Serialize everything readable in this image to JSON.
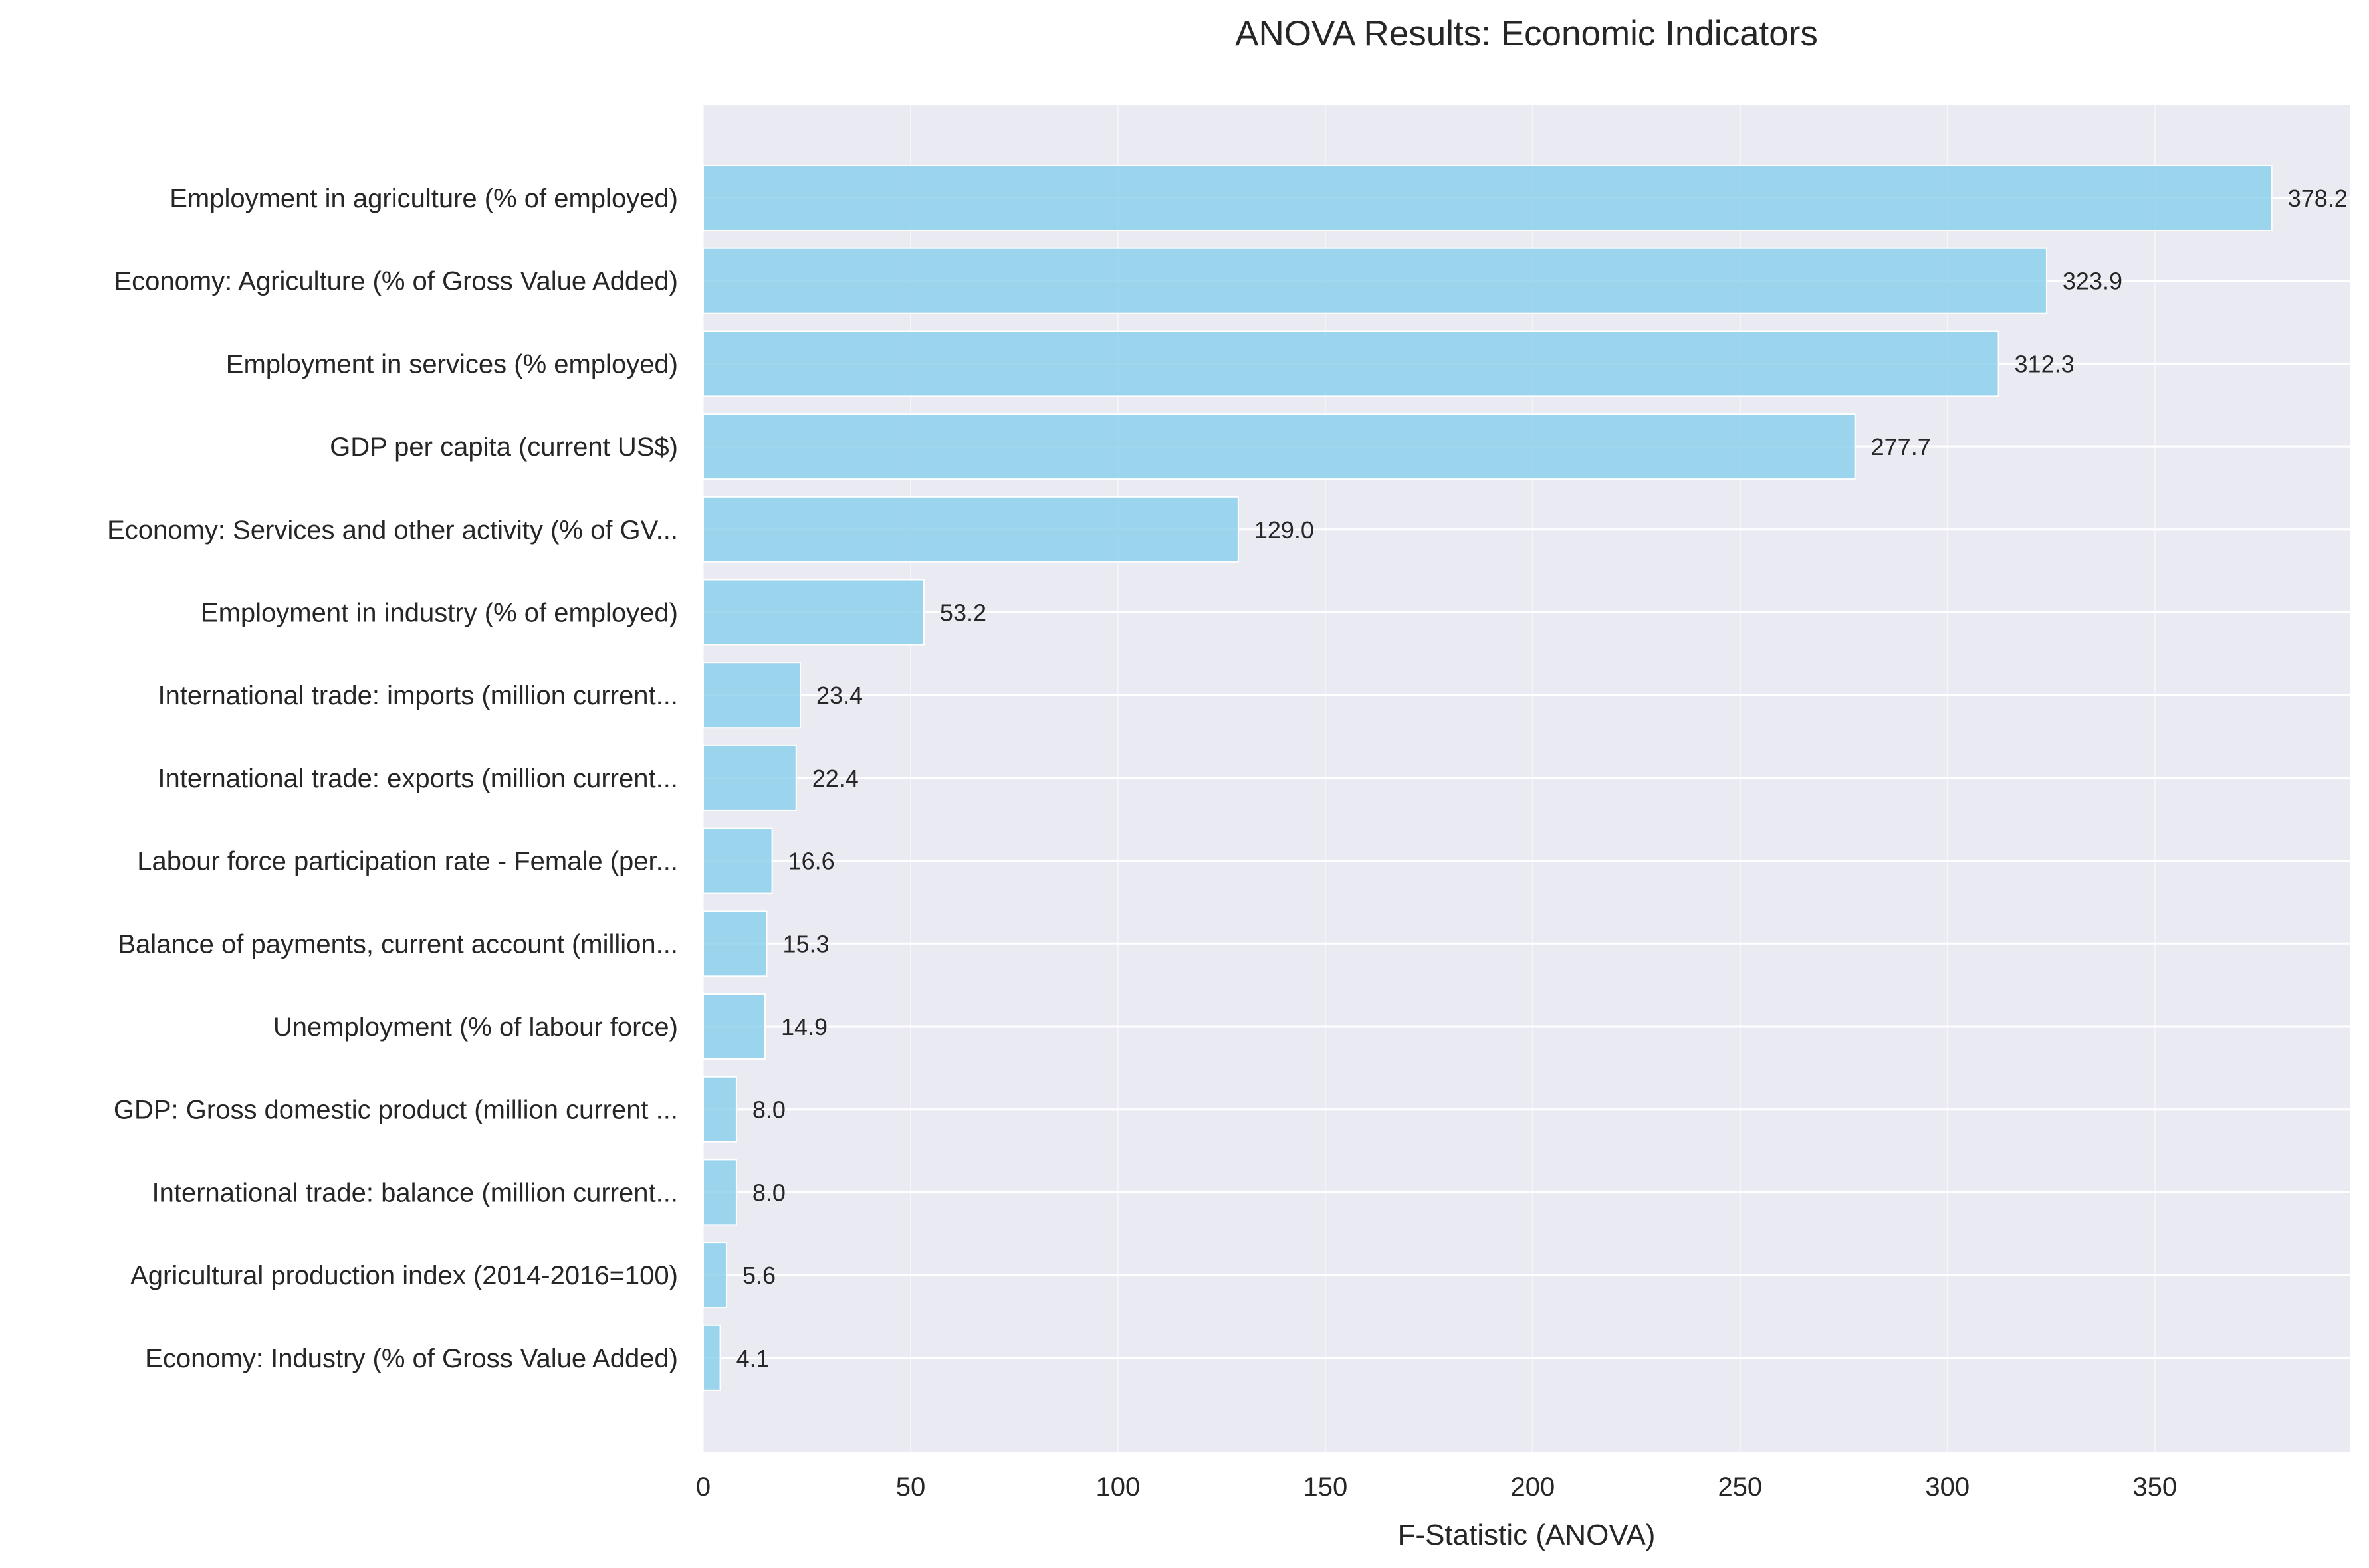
{
  "chart_data": {
    "type": "bar",
    "orientation": "horizontal",
    "title": "ANOVA Results: Economic Indicators",
    "xlabel": "F-Statistic (ANOVA)",
    "ylabel": "",
    "xlim": [
      0,
      397
    ],
    "xticks": [
      0,
      50,
      100,
      150,
      200,
      250,
      300,
      350
    ],
    "grid": true,
    "bar_color": "#87CEEB",
    "background_color": "#EAEAF2",
    "categories": [
      "Employment in agriculture (% of employed)",
      "Economy: Agriculture (% of Gross Value Added)",
      "Employment in services (% employed)",
      "GDP per capita (current US$)",
      "Economy: Services and other activity (% of GV...",
      "Employment in industry (% of employed)",
      "International trade: imports (million current...",
      "International trade: exports (million current...",
      "Labour force participation rate - Female (per...",
      "Balance of payments, current account (million...",
      "Unemployment (% of labour force)",
      "GDP: Gross domestic product (million current ...",
      "International trade: balance (million current...",
      "Agricultural production index (2014-2016=100)",
      "Economy: Industry (% of Gross Value Added)"
    ],
    "values": [
      378.2,
      323.9,
      312.3,
      277.7,
      129.0,
      53.2,
      23.4,
      22.4,
      16.6,
      15.3,
      14.9,
      8.0,
      8.0,
      5.6,
      4.1
    ],
    "value_labels": [
      "378.2",
      "323.9",
      "312.3",
      "277.7",
      "129.0",
      "53.2",
      "23.4",
      "22.4",
      "16.6",
      "15.3",
      "14.9",
      "8.0",
      "8.0",
      "5.6",
      "4.1"
    ]
  }
}
